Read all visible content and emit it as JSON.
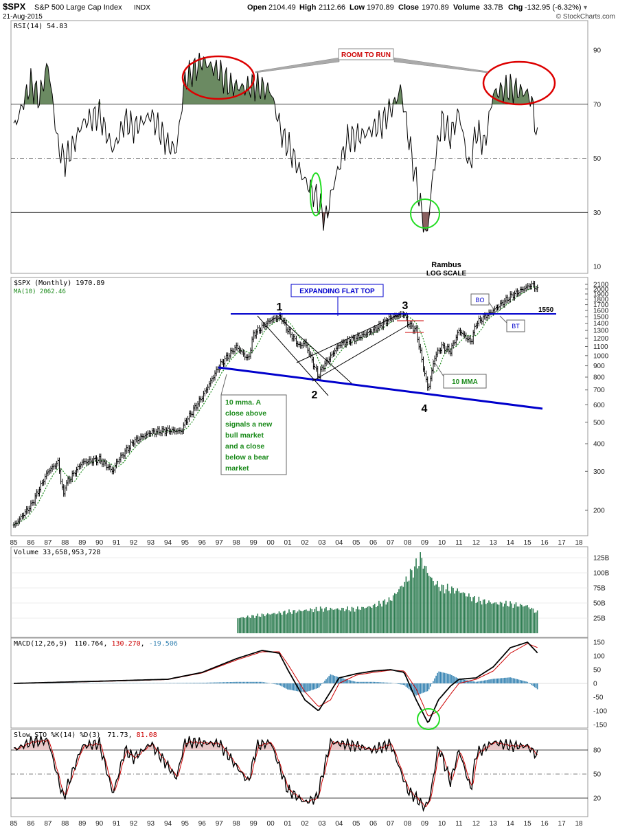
{
  "header": {
    "symbol": "$SPX",
    "name": "S&P 500 Large Cap Index",
    "exchange": "INDX",
    "date": "21-Aug-2015",
    "open_label": "Open",
    "open": "2104.49",
    "high_label": "High",
    "high": "2112.66",
    "low_label": "Low",
    "low": "1970.89",
    "close_label": "Close",
    "close": "1970.89",
    "volume_label": "Volume",
    "volume": "33.7B",
    "chg_label": "Chg",
    "chg": "-132.95 (-6.32%)",
    "watermark": "© StockCharts.com"
  },
  "colors": {
    "frame": "#888888",
    "grid": "#000000",
    "rsi_fill": "#6b8a62",
    "rsi_fill_low": "#8a6060",
    "volume": "#2e7d52",
    "macd_hist": "#3a86b4",
    "signal": "#cc0000",
    "channel": "#0000cc",
    "circle_red": "#dd0000",
    "circle_green": "#22dd22",
    "ma": "#1a8a1a"
  },
  "x_axis": {
    "labels": [
      "85",
      "86",
      "87",
      "88",
      "89",
      "90",
      "91",
      "92",
      "93",
      "94",
      "95",
      "96",
      "97",
      "98",
      "99",
      "00",
      "01",
      "02",
      "03",
      "04",
      "05",
      "06",
      "07",
      "08",
      "09",
      "10",
      "11",
      "12",
      "13",
      "14",
      "15",
      "16",
      "17",
      "18"
    ]
  },
  "rsi_panel": {
    "legend": "RSI(14) 54.83",
    "levels": [
      "90",
      "70",
      "50",
      "30",
      "10"
    ],
    "annotation": "ROOM TO RUN",
    "footer": [
      "Rambus",
      "LOG SCALE"
    ]
  },
  "price_panel": {
    "legend": "$SPX (Monthly) 1970.89",
    "ma_legend": "MA(10) 2062.46",
    "levels": [
      "2100",
      "2000",
      "1900",
      "1800",
      "1700",
      "1600",
      "1500",
      "1400",
      "1300",
      "1200",
      "1100",
      "1000",
      "900",
      "800",
      "700",
      "600",
      "500",
      "400",
      "300",
      "200"
    ],
    "level_1550": "1550",
    "box_expanding": "EXPANDING FLAT TOP",
    "box_mma_lines": [
      "10 mma. A",
      "close above",
      "signals a new",
      "bull market",
      "and a close",
      "below a bear",
      "market"
    ],
    "box_10mma": "10 MMA",
    "box_bo": "BO",
    "box_bt": "BT",
    "points": [
      "1",
      "2",
      "3",
      "4"
    ]
  },
  "volume_panel": {
    "legend": "Volume 33,658,953,728",
    "levels": [
      "125B",
      "100B",
      "75B",
      "50B",
      "25B"
    ]
  },
  "macd_panel": {
    "legend_name": "MACD(12,26,9)",
    "legend_v1": "110.764",
    "legend_v2": "130.270",
    "legend_v3": "-19.506",
    "levels": [
      "150",
      "100",
      "50",
      "0",
      "-50",
      "-100",
      "-150"
    ]
  },
  "sto_panel": {
    "legend_name": "Slow STO %K(14) %D(3)",
    "legend_v1": "71.73",
    "legend_v2": "81.08",
    "levels": [
      "80",
      "50",
      "20"
    ]
  },
  "chart_data": [
    {
      "type": "line",
      "name": "RSI(14)",
      "x": [
        1985,
        1986,
        1986.5,
        1987,
        1987.6,
        1988,
        1988.5,
        1989,
        1990,
        1990.8,
        1991.5,
        1992,
        1993,
        1994,
        1994.5,
        1995,
        1996,
        1997,
        1997.6,
        1998.5,
        1999,
        2000,
        2000.7,
        2001,
        2001.8,
        2002.7,
        2003.2,
        2003.7,
        2004.5,
        2005.5,
        2006.5,
        2007.3,
        2007.6,
        2008.2,
        2008.6,
        2009.1,
        2009.5,
        2010,
        2010.5,
        2011,
        2011.6,
        2012,
        2012.5,
        2013,
        2014,
        2015,
        2015.3,
        2015.6
      ],
      "y": [
        61,
        78,
        72,
        85,
        54,
        49,
        55,
        63,
        66,
        53,
        64,
        61,
        66,
        55,
        53,
        79,
        86,
        82,
        77,
        76,
        77,
        75,
        58,
        55,
        44,
        35,
        27,
        41,
        57,
        59,
        63,
        71,
        76,
        52,
        38,
        20,
        45,
        64,
        58,
        67,
        46,
        60,
        55,
        74,
        76,
        74,
        70,
        55
      ],
      "ylim": [
        0,
        100
      ]
    },
    {
      "type": "line",
      "name": "$SPX (Monthly)",
      "log_scale": true,
      "x": [
        1985,
        1986,
        1987,
        1987.6,
        1987.9,
        1988,
        1989,
        1990,
        1990.8,
        1991,
        1992,
        1993,
        1994,
        1994.8,
        1995,
        1996,
        1997,
        1998,
        1998.7,
        1999,
        2000,
        2000.6,
        2001,
        2001.7,
        2002,
        2002.8,
        2003,
        2004,
        2005,
        2006,
        2007,
        2007.8,
        2008,
        2008.5,
        2008.9,
        2009.2,
        2009.6,
        2010,
        2010.5,
        2011,
        2011.7,
        2012,
        2013,
        2014,
        2015,
        2015.3,
        2015.6
      ],
      "y": [
        170,
        210,
        300,
        330,
        230,
        260,
        330,
        340,
        300,
        330,
        410,
        450,
        460,
        455,
        500,
        650,
        900,
        1100,
        960,
        1250,
        1450,
        1500,
        1300,
        1100,
        1150,
        800,
        880,
        1120,
        1200,
        1300,
        1480,
        1550,
        1400,
        1300,
        900,
        700,
        1000,
        1100,
        1050,
        1300,
        1150,
        1400,
        1600,
        1850,
        2050,
        2100,
        1970
      ],
      "ylim": [
        150,
        2300
      ]
    },
    {
      "type": "bar",
      "name": "Volume",
      "x": [
        1998,
        1999,
        2000,
        2001,
        2002,
        2003,
        2004,
        2005,
        2006,
        2007,
        2008,
        2008.8,
        2009,
        2009.5,
        2010,
        2011,
        2012,
        2013,
        2014,
        2015,
        2015.6
      ],
      "values": [
        25,
        28,
        32,
        35,
        38,
        40,
        40,
        40,
        45,
        55,
        90,
        125,
        110,
        85,
        75,
        70,
        55,
        50,
        48,
        45,
        33.7
      ],
      "unit": "B",
      "ylim": [
        0,
        140
      ]
    },
    {
      "type": "line",
      "name": "MACD(12,26,9)",
      "x": [
        1985,
        1990,
        1994,
        1996,
        1998,
        1999.5,
        2000.5,
        2001,
        2002,
        2002.8,
        2003.5,
        2004,
        2005,
        2006,
        2007,
        2007.8,
        2008.5,
        2009.2,
        2009.8,
        2010.5,
        2011,
        2012,
        2013,
        2014,
        2015,
        2015.6
      ],
      "y": [
        0,
        8,
        15,
        40,
        90,
        120,
        110,
        50,
        -60,
        -100,
        -30,
        20,
        35,
        45,
        50,
        40,
        -60,
        -145,
        -60,
        -10,
        15,
        20,
        60,
        130,
        150,
        110
      ],
      "signal": [
        0,
        7,
        14,
        38,
        85,
        115,
        115,
        70,
        -30,
        -85,
        -60,
        0,
        30,
        40,
        48,
        45,
        -20,
        -120,
        -100,
        -40,
        0,
        15,
        45,
        110,
        145,
        130
      ],
      "ylim": [
        -175,
        175
      ]
    },
    {
      "type": "line",
      "name": "Slow STO %K(14) %D(3)",
      "x": [
        1985,
        1986,
        1987,
        1987.9,
        1988.3,
        1989,
        1990,
        1990.8,
        1991.5,
        1992,
        1993,
        1994,
        1994.5,
        1995,
        1997,
        1998.7,
        1999.2,
        2000,
        2001,
        2002,
        2002.7,
        2003.5,
        2005,
        2006,
        2007,
        2008,
        2008.5,
        2009,
        2009.3,
        2009.8,
        2010.5,
        2011,
        2011.7,
        2012,
        2013,
        2014,
        2015,
        2015.6
      ],
      "y": [
        80,
        90,
        92,
        20,
        45,
        85,
        88,
        25,
        80,
        70,
        88,
        60,
        45,
        90,
        88,
        40,
        85,
        90,
        30,
        15,
        20,
        90,
        85,
        80,
        88,
        30,
        20,
        8,
        20,
        85,
        40,
        80,
        30,
        75,
        90,
        85,
        85,
        72
      ],
      "ylim": [
        0,
        100
      ]
    }
  ]
}
